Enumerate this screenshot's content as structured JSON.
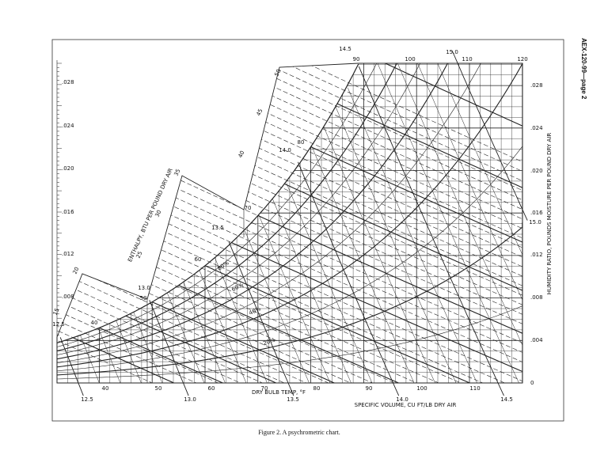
{
  "header": {
    "page_label": "AEX-120-99—page 2"
  },
  "figure": {
    "axis_labels": {
      "dry_bulb": "DRY BULB TEMP, °F",
      "specific_volume": "SPECIFIC VOLUME, CU FT/LB DRY AIR",
      "humidity_ratio": "HUMIDITY RATIO, POUNDS MOISTURE PER POUND DRY AIR",
      "enthalpy": "ENTHALPY, BTU PER POUND DRY AIR"
    },
    "dry_bulb_bottom": [
      "40",
      "50",
      "60",
      "70",
      "80",
      "90",
      "100",
      "110"
    ],
    "dry_bulb_top": [
      "90",
      "100",
      "110",
      "120"
    ],
    "humidity_right": [
      ".028",
      ".024",
      ".020",
      ".016",
      ".012",
      ".008",
      ".004",
      "0"
    ],
    "humidity_left": [
      ".028",
      ".024",
      ".020",
      ".016",
      ".012",
      ".008"
    ],
    "volume_bottom": [
      "12.5",
      "13.0",
      "13.5",
      "14.0",
      "14.5"
    ],
    "volume_top": [
      "14.5",
      "15.0"
    ],
    "volume_saturation": [
      "14.0",
      "13.5",
      "13.0",
      "12.5",
      "15.0"
    ],
    "enthalpy_scale": [
      "15",
      "20",
      "25",
      "30",
      "35",
      "40",
      "45",
      "50"
    ],
    "wet_bulb": [
      "40",
      "50",
      "60",
      "70",
      "80"
    ],
    "relative_humidity": [
      "20%",
      "40%",
      "60%",
      "80%"
    ]
  },
  "caption": "Figure 2. A psychrometric chart."
}
